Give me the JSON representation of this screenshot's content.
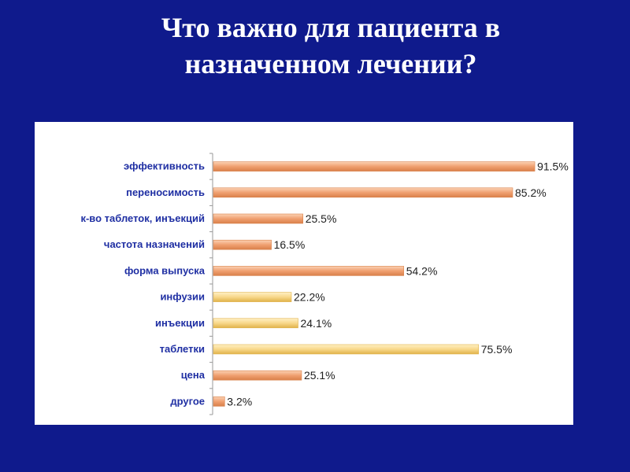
{
  "title": "Что важно для пациента в назначенном лечении?",
  "colors": {
    "background": "#0f1a8c",
    "panel": "#ffffff",
    "title_text": "#ffffff",
    "category_text": "#1f2fa3",
    "bar_orange": "#f0a070",
    "bar_orange_edge": "#d9804a",
    "bar_yellow": "#f8d88a",
    "bar_yellow_edge": "#e0b24a",
    "axis": "#999999"
  },
  "chart_data": {
    "type": "bar",
    "orientation": "horizontal",
    "categories": [
      "эффективность",
      "переносимость",
      "к-во таблеток, инъекций",
      "частота назначений",
      "форма выпуска",
      "инфузии",
      "инъекции",
      "таблетки",
      "цена",
      "другое"
    ],
    "values": [
      91.5,
      85.2,
      25.5,
      16.5,
      54.2,
      22.2,
      24.1,
      75.5,
      25.1,
      3.2
    ],
    "value_labels": [
      "91.5%",
      "85.2%",
      "25.5%",
      "16.5%",
      "54.2%",
      "22.2%",
      "24.1%",
      "75.5%",
      "25.1%",
      "3.2%"
    ],
    "bar_colors": [
      "orange",
      "orange",
      "orange",
      "orange",
      "orange",
      "yellow",
      "yellow",
      "yellow",
      "orange",
      "orange"
    ],
    "xlim": [
      0,
      100
    ],
    "grid": false,
    "legend": "none"
  }
}
